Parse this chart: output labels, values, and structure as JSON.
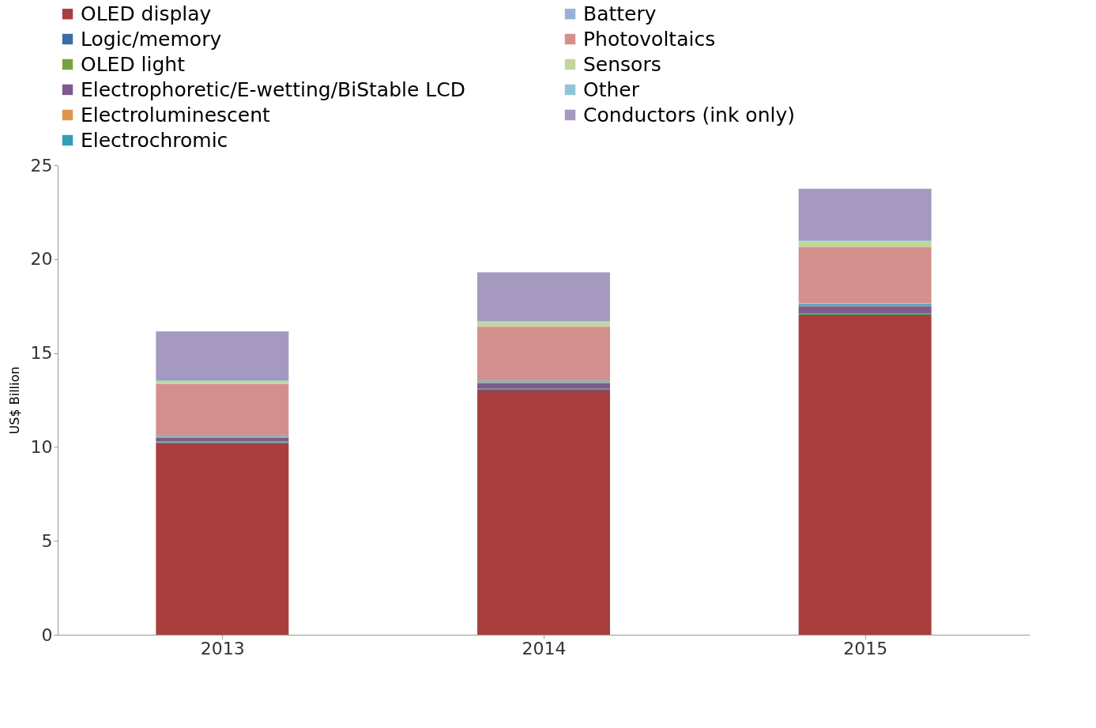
{
  "chart_data": {
    "type": "bar",
    "stacked": true,
    "ylabel": "US$ Billion",
    "categories": [
      "2013",
      "2014",
      "2015"
    ],
    "ylim": [
      0,
      25
    ],
    "yticks": [
      0,
      5,
      10,
      15,
      20,
      25
    ],
    "grid": false,
    "legend": "top",
    "series": [
      {
        "name": "OLED display",
        "color": "#a83f3e",
        "values": [
          10.2,
          13.0,
          17.0
        ]
      },
      {
        "name": "Logic/memory",
        "color": "#3a6ea5",
        "values": [
          0.05,
          0.05,
          0.05
        ]
      },
      {
        "name": "OLED light",
        "color": "#77a33c",
        "values": [
          0.05,
          0.05,
          0.05
        ]
      },
      {
        "name": "Electrophoretic/E-wetting/BiStable LCD",
        "color": "#7d5b8c",
        "values": [
          0.2,
          0.3,
          0.4
        ]
      },
      {
        "name": "Electroluminescent",
        "color": "#e0954a",
        "values": [
          0.05,
          0.05,
          0.05
        ]
      },
      {
        "name": "Electrochromic",
        "color": "#31a0b5",
        "values": [
          0.05,
          0.05,
          0.05
        ]
      },
      {
        "name": "Battery",
        "color": "#95b3d7",
        "values": [
          0.05,
          0.05,
          0.05
        ]
      },
      {
        "name": "Photovoltaics",
        "color": "#d38f8e",
        "values": [
          2.7,
          2.85,
          3.0
        ]
      },
      {
        "name": "Sensors",
        "color": "#c3d59b",
        "values": [
          0.15,
          0.25,
          0.3
        ]
      },
      {
        "name": "Other",
        "color": "#8fc6d6",
        "values": [
          0.05,
          0.05,
          0.05
        ]
      },
      {
        "name": "Conductors (ink only)",
        "color": "#a599c0",
        "values": [
          2.6,
          2.6,
          2.75
        ]
      }
    ]
  }
}
